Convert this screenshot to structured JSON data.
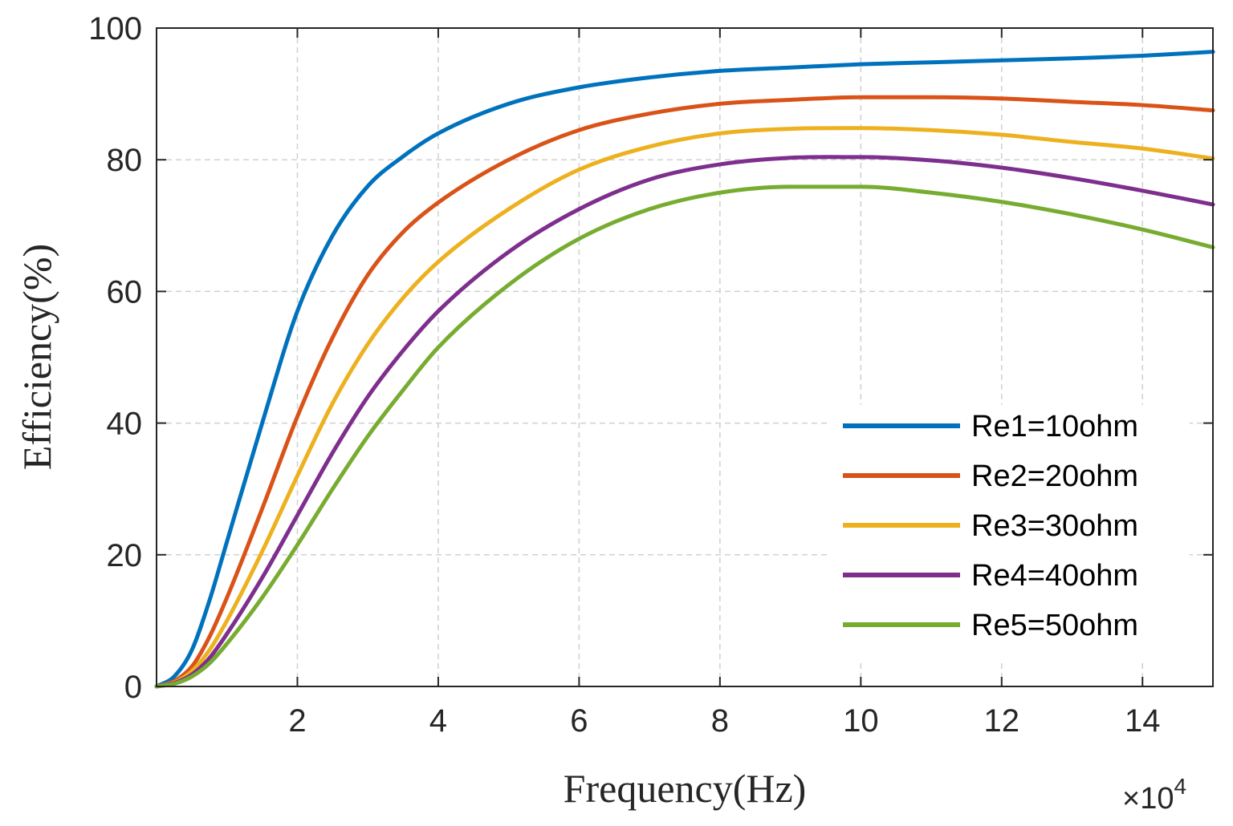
{
  "chart_data": {
    "type": "line",
    "xlabel": "Frequency(Hz)",
    "ylabel": "Efficiency(%)",
    "x_exponent": {
      "base": "×10",
      "power": "4"
    },
    "xlim": [
      0,
      15
    ],
    "ylim": [
      0,
      100
    ],
    "xticks": [
      2,
      4,
      6,
      8,
      10,
      12,
      14
    ],
    "xtick_labels": [
      "2",
      "4",
      "6",
      "8",
      "10",
      "12",
      "14"
    ],
    "yticks": [
      0,
      20,
      40,
      60,
      80,
      100
    ],
    "ytick_labels": [
      "0",
      "20",
      "40",
      "60",
      "80",
      "100"
    ],
    "grid": true,
    "legend_position": "bottom-right",
    "x": [
      0,
      0.25,
      0.5,
      0.75,
      1,
      1.5,
      2,
      2.5,
      3,
      3.5,
      4,
      5,
      6,
      7,
      8,
      9,
      10,
      11,
      12,
      13,
      14,
      15
    ],
    "series": [
      {
        "name": "Re1=10ohm",
        "color": "#0072BD",
        "values": [
          0,
          1.5,
          5.5,
          13,
          22,
          40,
          57,
          68.5,
          76,
          80.5,
          84,
          88.5,
          91,
          92.5,
          93.5,
          94,
          94.5,
          94.8,
          95.1,
          95.4,
          95.8,
          96.4
        ]
      },
      {
        "name": "Re2=20ohm",
        "color": "#D95319",
        "values": [
          0,
          0.8,
          3,
          7.5,
          13.5,
          27,
          41,
          53,
          62.5,
          69,
          73.5,
          80,
          84.5,
          87,
          88.5,
          89.1,
          89.5,
          89.5,
          89.3,
          88.8,
          88.3,
          87.5
        ]
      },
      {
        "name": "Re3=30ohm",
        "color": "#EDB120",
        "values": [
          0,
          0.6,
          2.3,
          5.5,
          10,
          20.5,
          32,
          43,
          52,
          59,
          64.5,
          72.5,
          78.5,
          82,
          84,
          84.7,
          84.8,
          84.5,
          83.8,
          82.7,
          81.7,
          80.2
        ]
      },
      {
        "name": "Re4=40ohm",
        "color": "#7E2F8E",
        "values": [
          0,
          0.5,
          1.8,
          4.3,
          8,
          16.5,
          26,
          35.5,
          44,
          51,
          57,
          66,
          72.5,
          77,
          79.3,
          80.3,
          80.4,
          79.9,
          78.8,
          77.2,
          75.3,
          73.2
        ]
      },
      {
        "name": "Re5=50ohm",
        "color": "#77AC30",
        "values": [
          0,
          0.4,
          1.5,
          3.5,
          6.5,
          13.5,
          21.5,
          30,
          38,
          45,
          51.5,
          61,
          68,
          72.5,
          75,
          75.9,
          75.9,
          75,
          73.6,
          71.7,
          69.4,
          66.7
        ]
      }
    ]
  }
}
